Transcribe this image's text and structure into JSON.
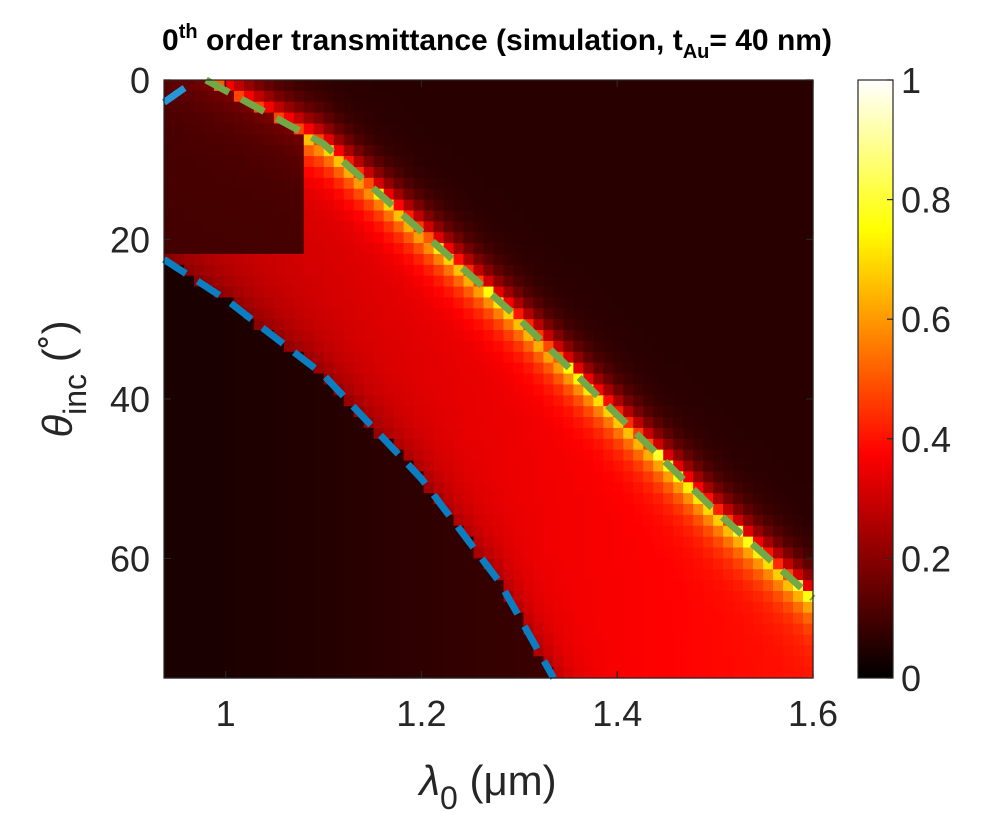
{
  "chart_data": {
    "type": "heatmap",
    "title": {
      "main": "0",
      "sup": "th",
      "mid": " order transmittance (simulation, t",
      "sub": "Au",
      "end": "= 40 nm)"
    },
    "xlabel": {
      "symbol": "λ",
      "sub": "0",
      "rest": " (μm)"
    },
    "ylabel": {
      "symbol": "θ",
      "sub": "inc",
      "rest": " (˚)"
    },
    "xlim": [
      0.937,
      1.6
    ],
    "ylim": [
      0,
      75
    ],
    "y_reversed": true,
    "x_ticks": [
      1,
      1.2,
      1.4,
      1.6
    ],
    "y_ticks": [
      0,
      20,
      40,
      60
    ],
    "x_tick_labels": [
      "1",
      "1.2",
      "1.4",
      "1.6"
    ],
    "y_tick_labels": [
      "0",
      "20",
      "40",
      "60"
    ],
    "colorbar": {
      "colormap": "hot",
      "clim": [
        0,
        1
      ],
      "ticks": [
        0,
        0.2,
        0.4,
        0.6,
        0.8,
        1
      ],
      "tick_labels": [
        "0",
        "0.2",
        "0.4",
        "0.6",
        "0.8",
        "1"
      ]
    },
    "grid": {
      "x_count": 65,
      "y_count": 55
    },
    "features": {
      "lower_boundary_curve": {
        "color": "#0b7dc1",
        "style": "dashed",
        "points": [
          [
            0.937,
            22.5
          ],
          [
            1.0,
            27.5
          ],
          [
            1.1,
            37
          ],
          [
            1.2,
            50
          ],
          [
            1.28,
            63
          ],
          [
            1.335,
            75
          ]
        ]
      },
      "upper_resonance_curve": {
        "color": "#74a846",
        "style": "dashed",
        "points": [
          [
            0.98,
            0
          ],
          [
            1.1,
            8
          ],
          [
            1.2,
            19
          ],
          [
            1.3,
            30
          ],
          [
            1.4,
            42
          ],
          [
            1.5,
            54
          ],
          [
            1.6,
            65
          ]
        ]
      },
      "short_cyan_segment": {
        "color": "#2596d8",
        "style": "dashed",
        "points": [
          [
            0.937,
            2.8
          ],
          [
            0.958,
            1.0
          ]
        ]
      }
    },
    "colors": {
      "lower_curve": "#0b7dc1",
      "upper_curve": "#74a846",
      "short_curve": "#2596d8"
    }
  }
}
